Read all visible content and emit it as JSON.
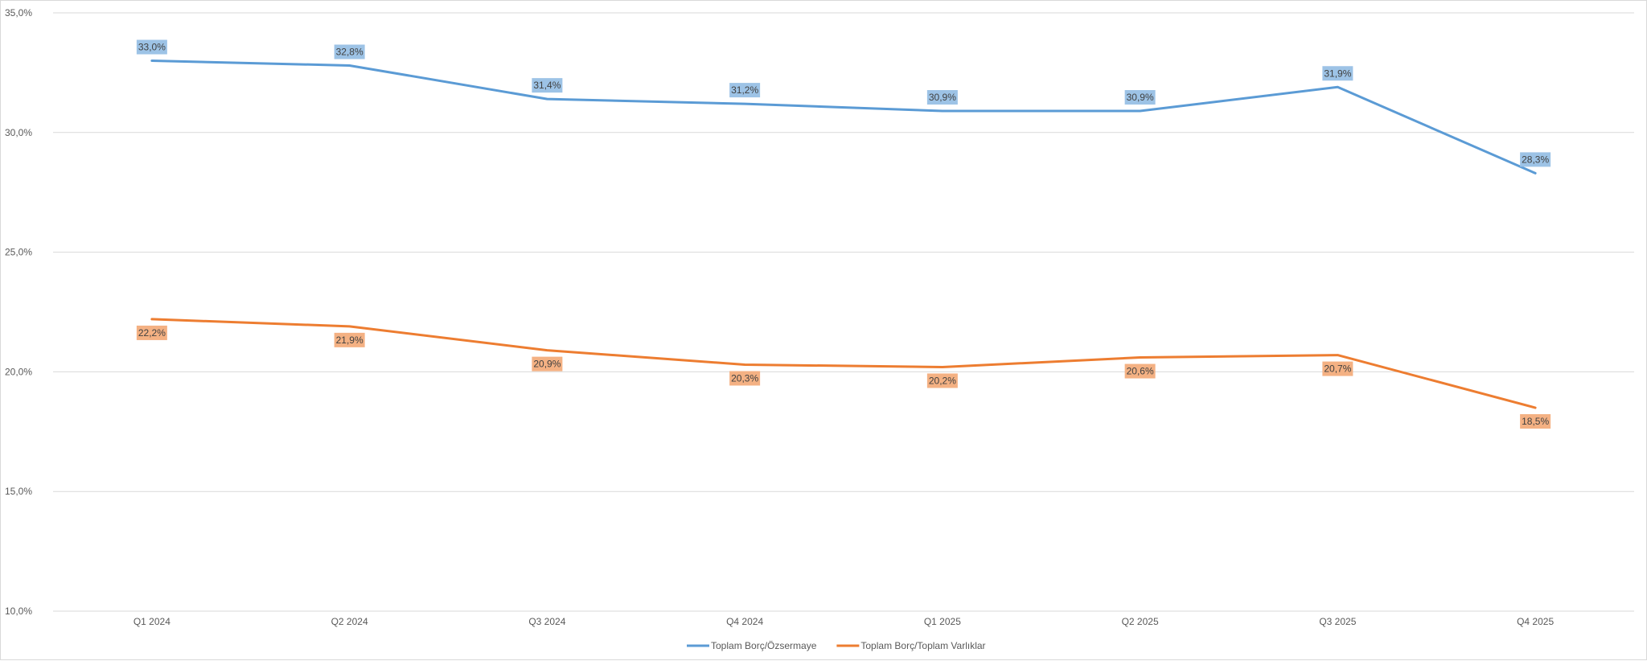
{
  "chart_data": {
    "type": "line",
    "title": "",
    "xlabel": "",
    "ylabel": "",
    "categories": [
      "Q1 2024",
      "Q2 2024",
      "Q3 2024",
      "Q4 2024",
      "Q1 2025",
      "Q2 2025",
      "Q3 2025",
      "Q4 2025"
    ],
    "ylim": [
      10,
      35
    ],
    "yticks": [
      10,
      15,
      20,
      25,
      30,
      35
    ],
    "ytick_labels": [
      "10,0%",
      "15,0%",
      "20,0%",
      "25,0%",
      "30,0%",
      "35,0%"
    ],
    "grid": true,
    "legend_position": "bottom",
    "series": [
      {
        "name": "Toplam Borç/Özsermaye",
        "color": "#5b9bd5",
        "label_bg": "#9dc3e6",
        "label_pos": "above",
        "values": [
          33.0,
          32.8,
          31.4,
          31.2,
          30.9,
          30.9,
          31.9,
          28.3
        ],
        "labels": [
          "33,0%",
          "32,8%",
          "31,4%",
          "31,2%",
          "30,9%",
          "30,9%",
          "31,9%",
          "28,3%"
        ]
      },
      {
        "name": "Toplam Borç/Toplam Varlıklar",
        "color": "#ed7d31",
        "label_bg": "#f4b183",
        "label_pos": "below",
        "values": [
          22.2,
          21.9,
          20.9,
          20.3,
          20.2,
          20.6,
          20.7,
          18.5
        ],
        "labels": [
          "22,2%",
          "21,9%",
          "20,9%",
          "20,3%",
          "20,2%",
          "20,6%",
          "20,7%",
          "18,5%"
        ]
      }
    ]
  }
}
